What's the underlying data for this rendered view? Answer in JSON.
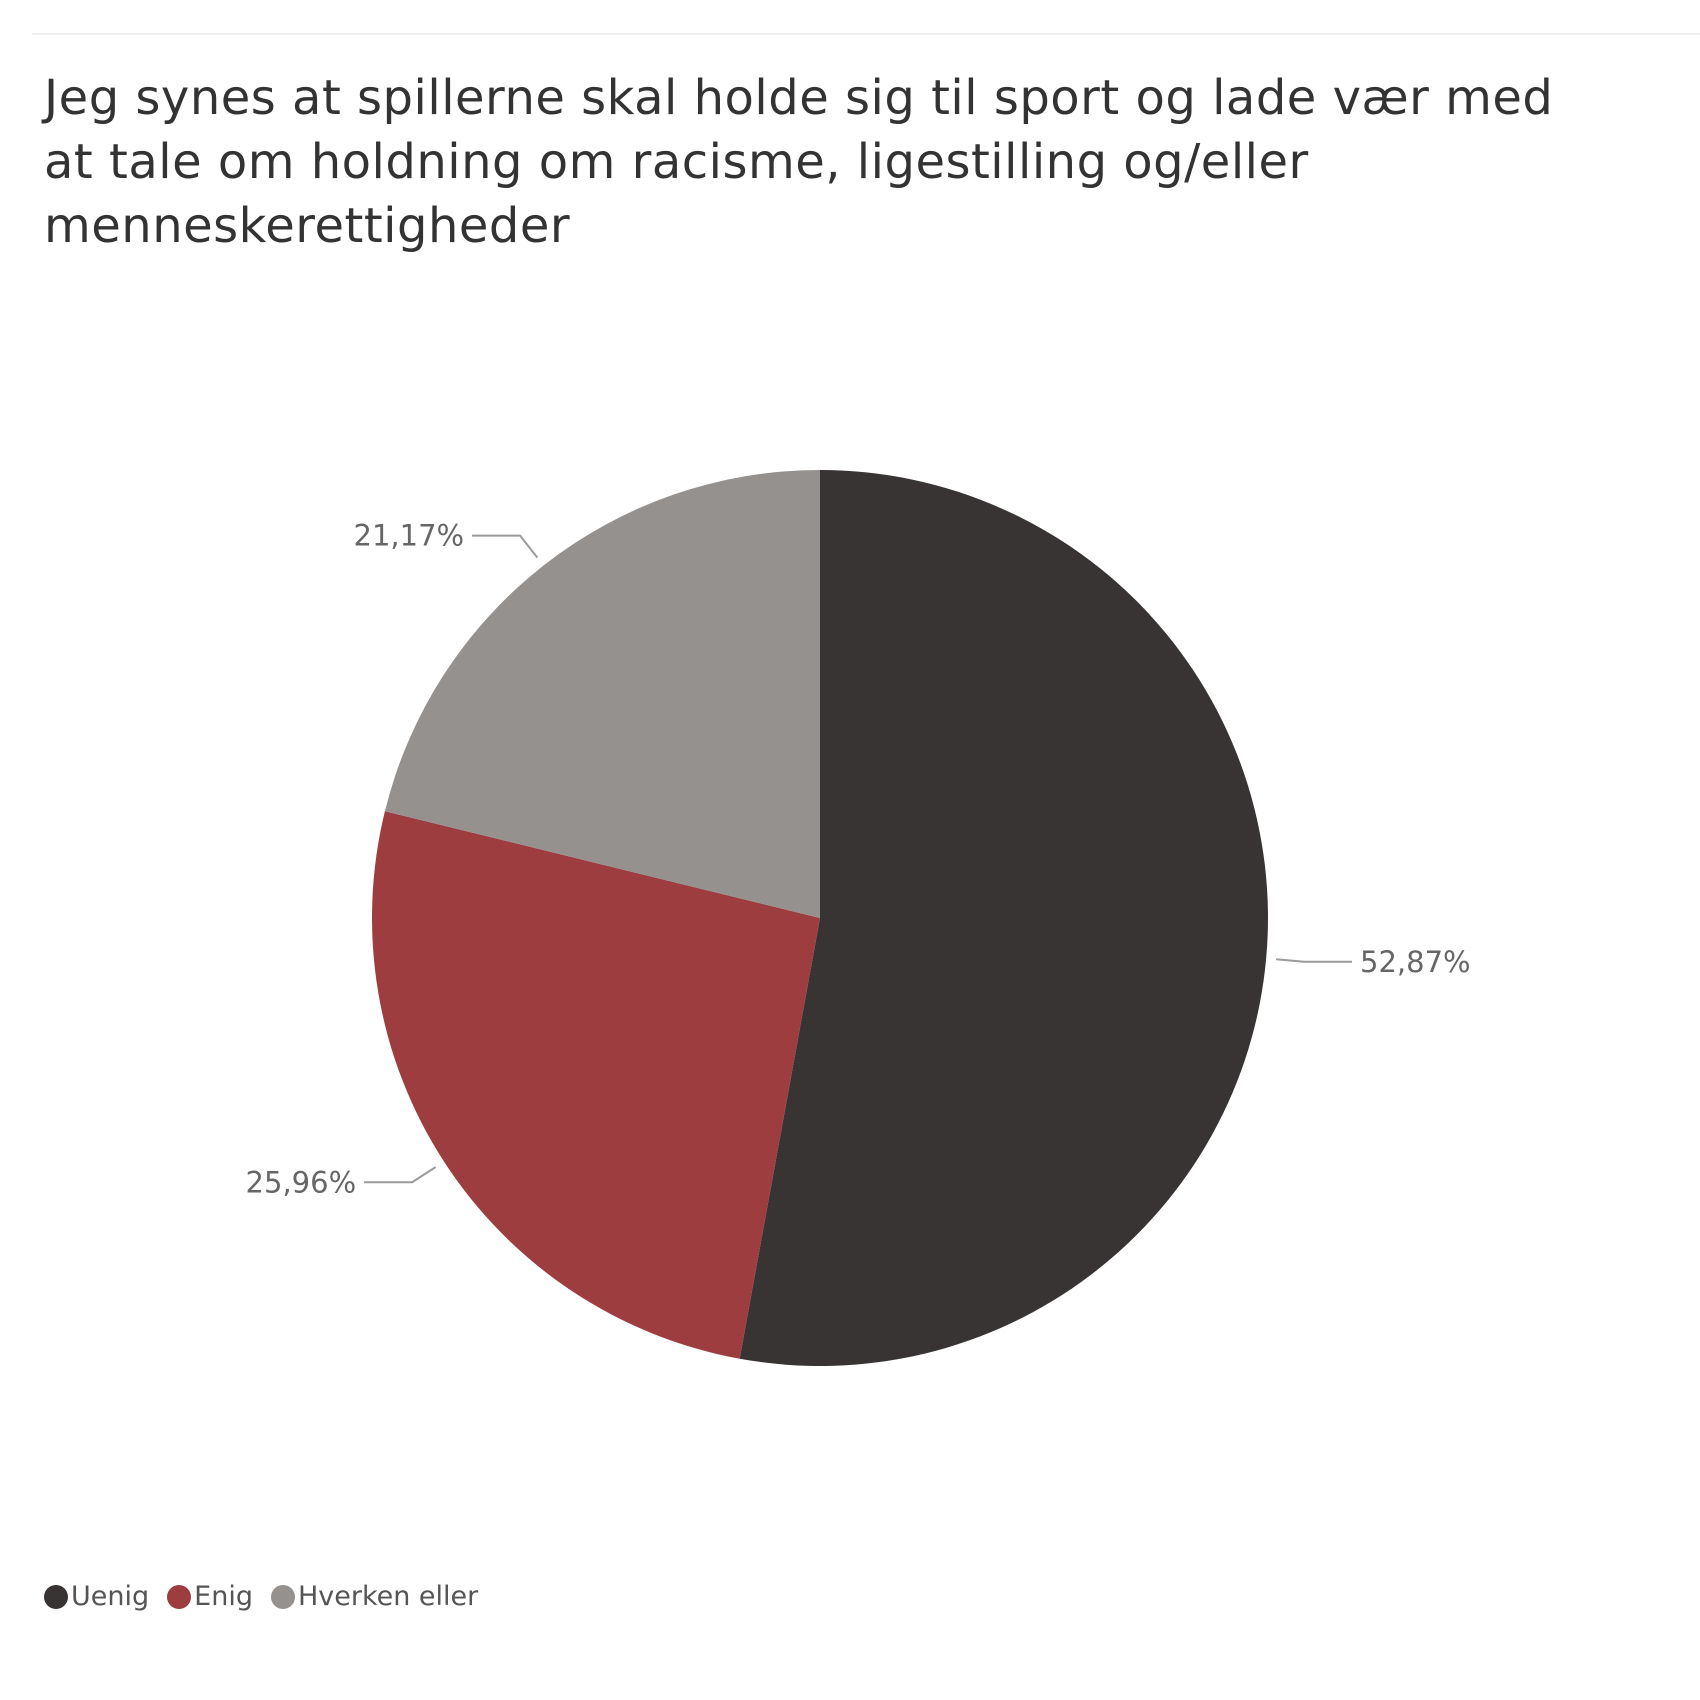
{
  "chart_data": {
    "type": "pie",
    "title": "Jeg synes at spillerne skal holde sig til sport og lade vær med at tale om holdning om racisme, ligestilling og/eller menneskerettigheder",
    "slices": [
      {
        "label": "Uenig",
        "value": 52.87,
        "display": "52,87%",
        "color": "#383434"
      },
      {
        "label": "Enig",
        "value": 25.96,
        "display": "25,96%",
        "color": "#9e3d40"
      },
      {
        "label": "Hverken eller",
        "value": 21.17,
        "display": "21,17%",
        "color": "#94918e"
      }
    ],
    "legend_position": "bottom-left",
    "start_angle": "top, clockwise"
  }
}
